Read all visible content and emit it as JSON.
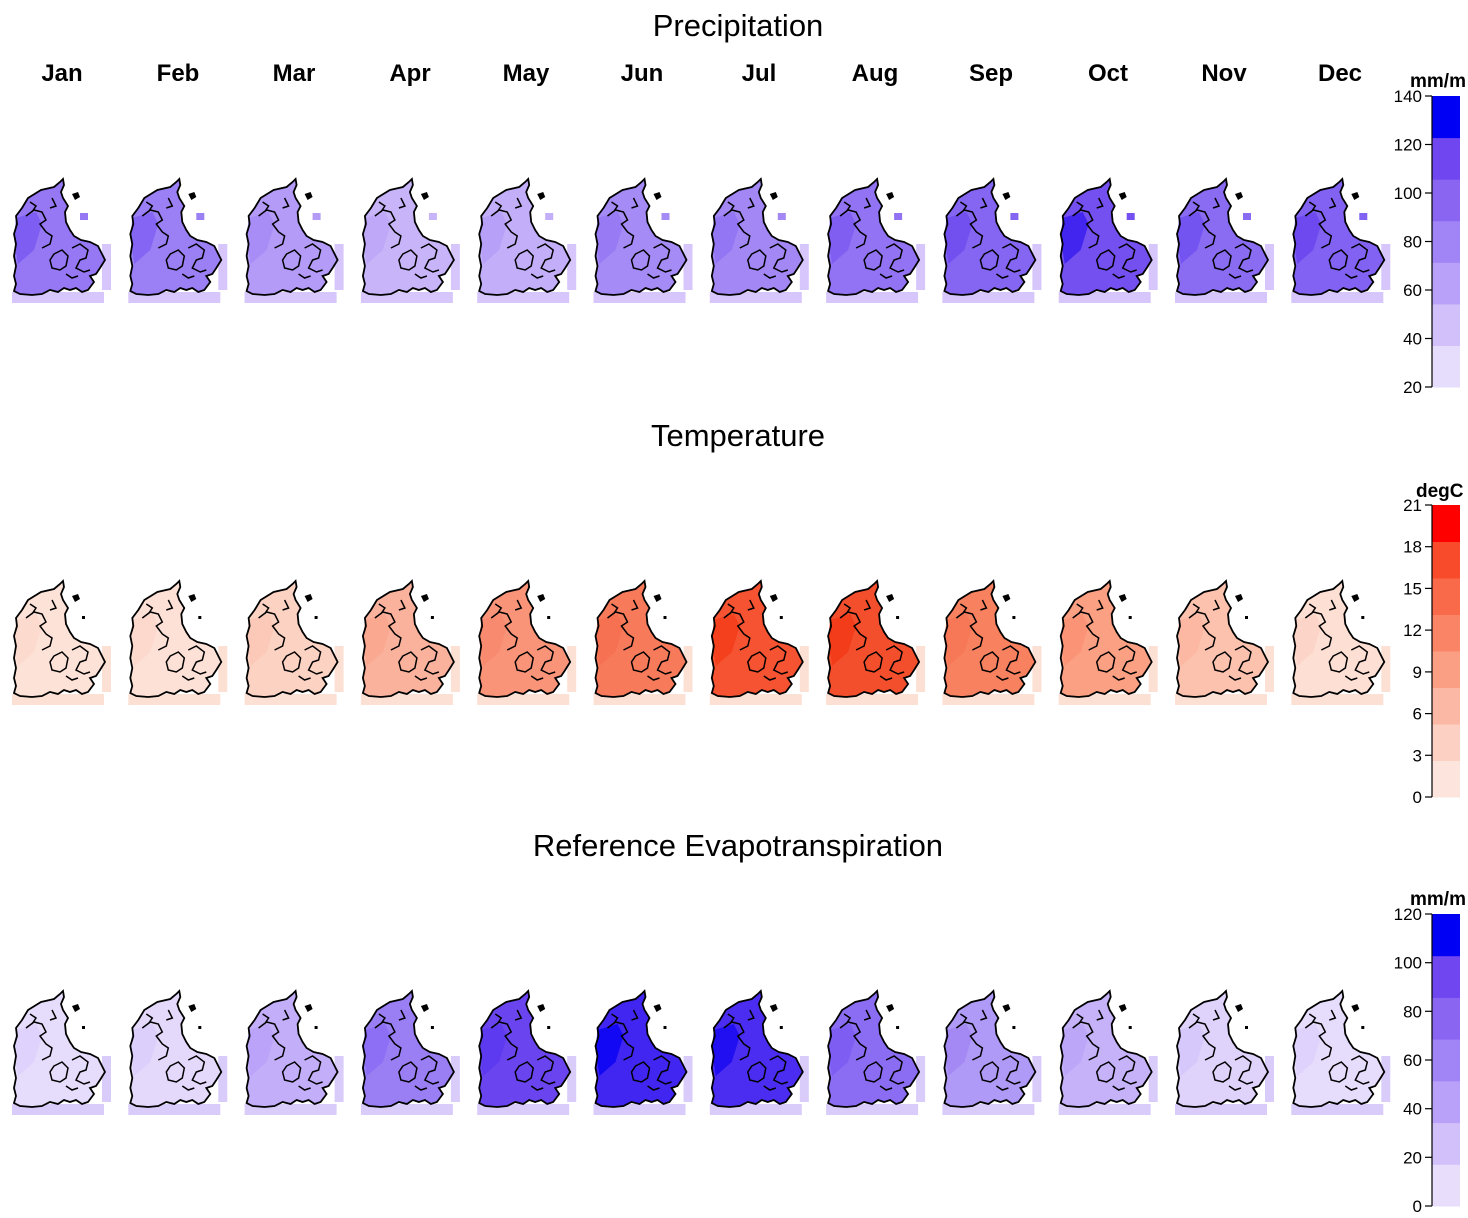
{
  "months": [
    "Jan",
    "Feb",
    "Mar",
    "Apr",
    "May",
    "Jun",
    "Jul",
    "Aug",
    "Sep",
    "Oct",
    "Nov",
    "Dec"
  ],
  "panels": [
    {
      "id": "precipitation",
      "title": "Precipitation",
      "unit": "mm/m",
      "legend": {
        "ticks": [
          "20",
          "40",
          "60",
          "80",
          "100",
          "120",
          "140"
        ],
        "colors": [
          "#e6dcfb",
          "#d2c0fa",
          "#b9a0f8",
          "#a184f5",
          "#8a65f2",
          "#7046f0",
          "#0000f5"
        ]
      },
      "monthly_color": [
        "#9678f4",
        "#9b7ff5",
        "#b39bf7",
        "#c8b4f9",
        "#c3aff9",
        "#a58bf5",
        "#a287f5",
        "#9173f3",
        "#8566f2",
        "#7550f0",
        "#8a6cf3",
        "#8262f2"
      ],
      "monthly_accent": [
        "#7a58f1",
        "#8160f2",
        "#a68bf6",
        "#bda6f8",
        "#b59ef8",
        "#9577f3",
        "#9173f3",
        "#7c5bf1",
        "#6f4cf0",
        "#3a1ff0",
        "#7050f0",
        "#6a45ef"
      ],
      "fringe": "#d6c6fb"
    },
    {
      "id": "temperature",
      "title": "Temperature",
      "unit": "degC",
      "legend": {
        "ticks": [
          "0",
          "3",
          "6",
          "9",
          "12",
          "15",
          "18",
          "21"
        ],
        "colors": [
          "#fde4dc",
          "#fcd0c2",
          "#fbb8a4",
          "#fa9f84",
          "#f98466",
          "#f86a49",
          "#f74b2b",
          "#ff0000"
        ]
      },
      "monthly_color": [
        "#fde2d8",
        "#fde0d6",
        "#fcd2c3",
        "#fab29d",
        "#f99479",
        "#f77b5b",
        "#f55331",
        "#f44f2c",
        "#f8815f",
        "#fba083",
        "#fcc2ae",
        "#fddfd4"
      ],
      "monthly_accent": [
        "#fdd8cc",
        "#fdd6ca",
        "#fcc8b7",
        "#f9a68e",
        "#f88a6d",
        "#f67050",
        "#f33d1a",
        "#f23818",
        "#f77756",
        "#fa9274",
        "#fbb6a1",
        "#fdd4c6"
      ],
      "fringe": "#fde0d4"
    },
    {
      "id": "reference-evapotranspiration",
      "title": "Reference Evapotranspiration",
      "unit": "mm/m",
      "legend": {
        "ticks": [
          "0",
          "20",
          "40",
          "60",
          "80",
          "100",
          "120"
        ],
        "colors": [
          "#e8defc",
          "#d2c0fa",
          "#b9a0f8",
          "#a184f5",
          "#8a65f2",
          "#7046f0",
          "#0000f5"
        ]
      },
      "monthly_color": [
        "#e6dcfb",
        "#e4d9fb",
        "#c3aef9",
        "#9a7ef4",
        "#6a45ef",
        "#4126f2",
        "#4a2df0",
        "#8b6df3",
        "#b09af7",
        "#c5b2f9",
        "#dfd3fb",
        "#e6dcfb"
      ],
      "monthly_accent": [
        "#ddd0fb",
        "#dbcdfb",
        "#b8a1f8",
        "#8a6cf3",
        "#5a37ee",
        "#0a03f5",
        "#1a0af2",
        "#7a5bf1",
        "#a286f5",
        "#b9a3f8",
        "#d5c6fa",
        "#ddd0fb"
      ],
      "fringe": "#d9ccfb"
    }
  ]
}
